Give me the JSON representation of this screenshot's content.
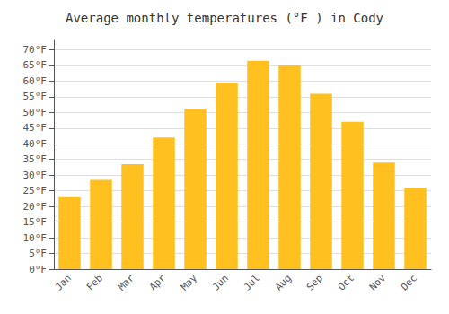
{
  "chart_data": {
    "type": "bar",
    "title": "Average monthly temperatures (°F ) in Cody",
    "categories": [
      "Jan",
      "Feb",
      "Mar",
      "Apr",
      "May",
      "Jun",
      "Jul",
      "Aug",
      "Sep",
      "Oct",
      "Nov",
      "Dec"
    ],
    "values": [
      23,
      28.5,
      33.5,
      42,
      51,
      59.5,
      66.5,
      65,
      56,
      47,
      34,
      26
    ],
    "color": "#FFC020",
    "ylim": [
      0,
      73
    ],
    "yticks": [
      {
        "value": 0,
        "label": "0°F"
      },
      {
        "value": 5,
        "label": "5°F"
      },
      {
        "value": 10,
        "label": "10°F"
      },
      {
        "value": 15,
        "label": "15°F"
      },
      {
        "value": 20,
        "label": "20°F"
      },
      {
        "value": 25,
        "label": "25°F"
      },
      {
        "value": 30,
        "label": "30°F"
      },
      {
        "value": 35,
        "label": "35°F"
      },
      {
        "value": 40,
        "label": "40°F"
      },
      {
        "value": 45,
        "label": "45°F"
      },
      {
        "value": 50,
        "label": "50°F"
      },
      {
        "value": 55,
        "label": "55°F"
      },
      {
        "value": 60,
        "label": "60°F"
      },
      {
        "value": 65,
        "label": "65°F"
      },
      {
        "value": 70,
        "label": "70°F"
      }
    ],
    "grid": true
  }
}
